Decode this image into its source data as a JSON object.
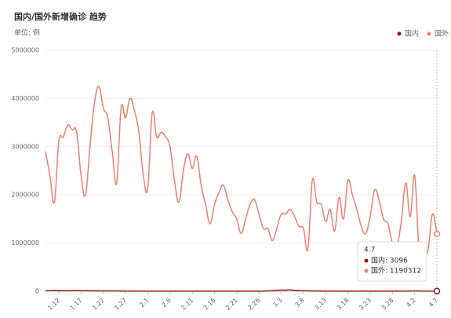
{
  "chart_data": {
    "type": "line",
    "title": "国内/国外新增确诊 趋势",
    "subtitle": "单位: 例",
    "categories": [
      null,
      null,
      null,
      "1.12",
      null,
      null,
      null,
      null,
      "1.17",
      null,
      null,
      null,
      null,
      "1.22",
      null,
      null,
      null,
      null,
      "1.27",
      null,
      null,
      null,
      null,
      "2.1",
      null,
      null,
      null,
      null,
      "2.6",
      null,
      null,
      null,
      null,
      "2.11",
      null,
      null,
      null,
      null,
      "2.16",
      null,
      null,
      null,
      null,
      "2.21",
      null,
      null,
      null,
      null,
      "2.26",
      null,
      null,
      null,
      null,
      "3.3",
      null,
      null,
      null,
      null,
      "3.8",
      null,
      null,
      null,
      null,
      "3.13",
      null,
      null,
      null,
      null,
      "3.18",
      null,
      null,
      null,
      null,
      "3.23",
      null,
      null,
      null,
      null,
      "3.28",
      null,
      null,
      null,
      null,
      "4.2",
      null,
      null,
      null,
      null,
      "4.7"
    ],
    "series": [
      {
        "name": "国内",
        "color": "#8b1a1a",
        "values": [
          12000,
          15000,
          18000,
          16000,
          14000,
          13000,
          15000,
          17000,
          14000,
          12000,
          11000,
          10000,
          9000,
          8000,
          9000,
          8000,
          7000,
          6000,
          5000,
          6000,
          5000,
          4000,
          4000,
          3000,
          3000,
          3000,
          2000,
          2000,
          2000,
          2000,
          2000,
          3000,
          2000,
          2000,
          2000,
          2000,
          1500,
          1500,
          1500,
          1500,
          1500,
          1200,
          1200,
          1200,
          1200,
          1500,
          2000,
          2500,
          3000,
          5000,
          8000,
          12000,
          18000,
          25000,
          22000,
          30000,
          20000,
          15000,
          12000,
          10000,
          8000,
          6000,
          5000,
          4000,
          4000,
          3500,
          3500,
          3000,
          3000,
          3000,
          3000,
          3500,
          3500,
          3000,
          3000,
          3000,
          3000,
          3500,
          3500,
          4000,
          4000,
          5000,
          6000,
          8000,
          7000,
          5000,
          4000,
          3500,
          3096
        ]
      },
      {
        "name": "国外",
        "color": "#f08070",
        "values": [
          2900000,
          2400000,
          1850000,
          3100000,
          3200000,
          3450000,
          3350000,
          3300000,
          2400000,
          2000000,
          3000000,
          3900000,
          4250000,
          3800000,
          3600000,
          2900000,
          2250000,
          3800000,
          3600000,
          4000000,
          3750000,
          3300000,
          2400000,
          2150000,
          3700000,
          3200000,
          3300000,
          3200000,
          3000000,
          2300000,
          1850000,
          2500000,
          2850000,
          2550000,
          2800000,
          2200000,
          1800000,
          1400000,
          1800000,
          2050000,
          2200000,
          1900000,
          1650000,
          1500000,
          1200000,
          1500000,
          1800000,
          1900000,
          1600000,
          1300000,
          1300000,
          1050000,
          1300000,
          1600000,
          1600000,
          1700000,
          1550000,
          1350000,
          1300000,
          880000,
          2300000,
          1850000,
          1800000,
          1450000,
          1700000,
          1250000,
          1950000,
          1500000,
          2300000,
          2000000,
          1700000,
          1350000,
          1200000,
          1550000,
          2100000,
          1900000,
          1500000,
          1400000,
          1000000,
          950000,
          1450000,
          2250000,
          1550000,
          2400000,
          850000,
          800000,
          850000,
          1600000,
          1190312
        ]
      }
    ],
    "ylim": [
      0,
      5000000
    ],
    "yticks": [
      0,
      1000000,
      2000000,
      3000000,
      4000000,
      5000000
    ],
    "grid": true,
    "legend": "top-right",
    "tooltip": {
      "title": "4.7",
      "lines": [
        "国内: 3096",
        "国外: 1190312"
      ]
    }
  }
}
